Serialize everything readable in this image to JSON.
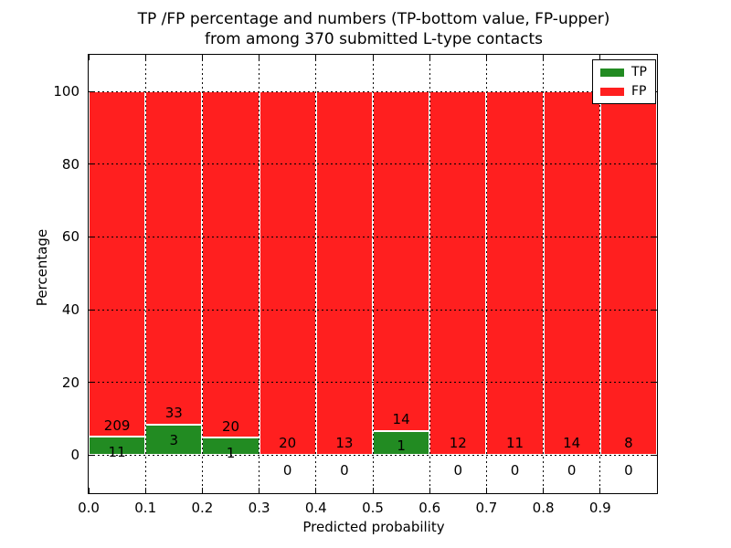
{
  "chart_data": {
    "type": "bar",
    "stacked": true,
    "title": "TP /FP percentage and numbers (TP-bottom value, FP-upper) from among 370 submitted L-type contacts",
    "title_lines": [
      "TP /FP percentage and numbers (TP-bottom value, FP-upper)",
      "from among 370 submitted L-type contacts"
    ],
    "xlabel": "Predicted probability",
    "ylabel": "Percentage",
    "xlim": [
      0.0,
      1.0
    ],
    "ylim": [
      -10.5,
      110.1
    ],
    "bin_width": 0.1,
    "grid": true,
    "legend_position": "upper right",
    "x_ticklabels": [
      "0.0",
      "0.1",
      "0.2",
      "0.3",
      "0.4",
      "0.5",
      "0.6",
      "0.7",
      "0.8",
      "0.9"
    ],
    "y_ticks": [
      0,
      20,
      40,
      60,
      80,
      100
    ],
    "series": [
      {
        "name": "TP",
        "color": "#228B22",
        "counts": [
          11,
          3,
          1,
          0,
          0,
          1,
          0,
          0,
          0,
          0
        ]
      },
      {
        "name": "FP",
        "color": "#FF1F1F",
        "counts": [
          209,
          33,
          20,
          20,
          13,
          14,
          12,
          11,
          14,
          8
        ]
      }
    ]
  }
}
